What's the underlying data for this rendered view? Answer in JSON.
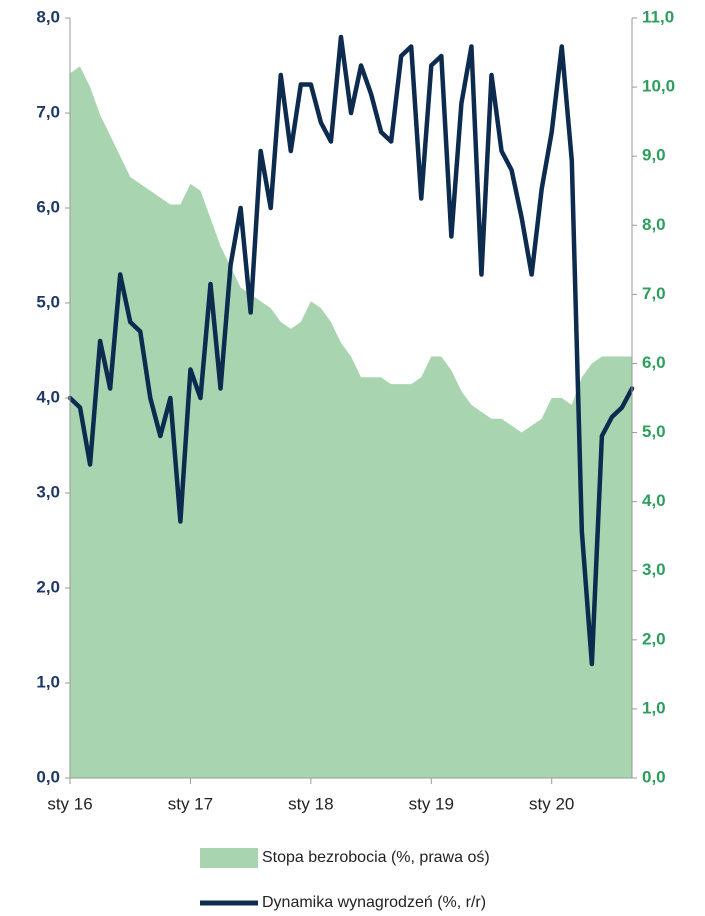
{
  "chart_data": {
    "type": "line",
    "categories": [
      "sty 16",
      null,
      null,
      null,
      null,
      null,
      null,
      null,
      null,
      null,
      null,
      null,
      "sty 17",
      null,
      null,
      null,
      null,
      null,
      null,
      null,
      null,
      null,
      null,
      null,
      "sty 18",
      null,
      null,
      null,
      null,
      null,
      null,
      null,
      null,
      null,
      null,
      null,
      "sty 19",
      null,
      null,
      null,
      null,
      null,
      null,
      null,
      null,
      null,
      null,
      null,
      "sty 20",
      null,
      null,
      null,
      null,
      null,
      null,
      null,
      null
    ],
    "series": [
      {
        "name": "Stopa bezrobocia (%, prawa oś)",
        "type": "area",
        "axis": "y2",
        "color": "#a8d5b0",
        "values": [
          10.2,
          10.3,
          10.0,
          9.6,
          9.3,
          9.0,
          8.7,
          8.6,
          8.5,
          8.4,
          8.3,
          8.3,
          8.6,
          8.5,
          8.1,
          7.7,
          7.4,
          7.1,
          7.0,
          6.9,
          6.8,
          6.6,
          6.5,
          6.6,
          6.9,
          6.8,
          6.6,
          6.3,
          6.1,
          5.8,
          5.8,
          5.8,
          5.7,
          5.7,
          5.7,
          5.8,
          6.1,
          6.1,
          5.9,
          5.6,
          5.4,
          5.3,
          5.2,
          5.2,
          5.1,
          5.0,
          5.1,
          5.2,
          5.5,
          5.5,
          5.4,
          5.8,
          6.0,
          6.1,
          6.1,
          6.1,
          6.1
        ]
      },
      {
        "name": "Dynamika wynagrodzeń (%, r/r)",
        "type": "line",
        "axis": "y",
        "color": "#0d2b4e",
        "values": [
          4.0,
          3.9,
          3.3,
          4.6,
          4.1,
          5.3,
          4.8,
          4.7,
          4.0,
          3.6,
          4.0,
          2.7,
          4.3,
          4.0,
          5.2,
          4.1,
          5.4,
          6.0,
          4.9,
          6.6,
          6.0,
          7.4,
          6.6,
          7.3,
          7.3,
          6.9,
          6.7,
          7.8,
          7.0,
          7.5,
          7.2,
          6.8,
          6.7,
          7.6,
          7.7,
          6.1,
          7.5,
          7.6,
          5.7,
          7.1,
          7.7,
          5.3,
          7.4,
          6.6,
          6.4,
          5.9,
          5.3,
          6.2,
          6.8,
          7.7,
          6.5,
          2.6,
          1.2,
          3.6,
          3.8,
          3.9,
          4.1
        ]
      }
    ],
    "ylim": [
      0,
      8
    ],
    "yticks": [
      {
        "value": 0,
        "label": "0,0"
      },
      {
        "value": 1,
        "label": "1,0"
      },
      {
        "value": 2,
        "label": "2,0"
      },
      {
        "value": 3,
        "label": "3,0"
      },
      {
        "value": 4,
        "label": "4,0"
      },
      {
        "value": 5,
        "label": "5,0"
      },
      {
        "value": 6,
        "label": "6,0"
      },
      {
        "value": 7,
        "label": "7,0"
      },
      {
        "value": 8,
        "label": "8,0"
      }
    ],
    "y2lim": [
      0,
      11
    ],
    "y2ticks": [
      {
        "value": 0,
        "label": "0,0"
      },
      {
        "value": 1,
        "label": "1,0"
      },
      {
        "value": 2,
        "label": "2,0"
      },
      {
        "value": 3,
        "label": "3,0"
      },
      {
        "value": 4,
        "label": "4,0"
      },
      {
        "value": 5,
        "label": "5,0"
      },
      {
        "value": 6,
        "label": "6,0"
      },
      {
        "value": 7,
        "label": "7,0"
      },
      {
        "value": 8,
        "label": "8,0"
      },
      {
        "value": 9,
        "label": "9,0"
      },
      {
        "value": 10,
        "label": "10,0"
      },
      {
        "value": 11,
        "label": "11,0"
      }
    ],
    "legend": "bottom"
  }
}
